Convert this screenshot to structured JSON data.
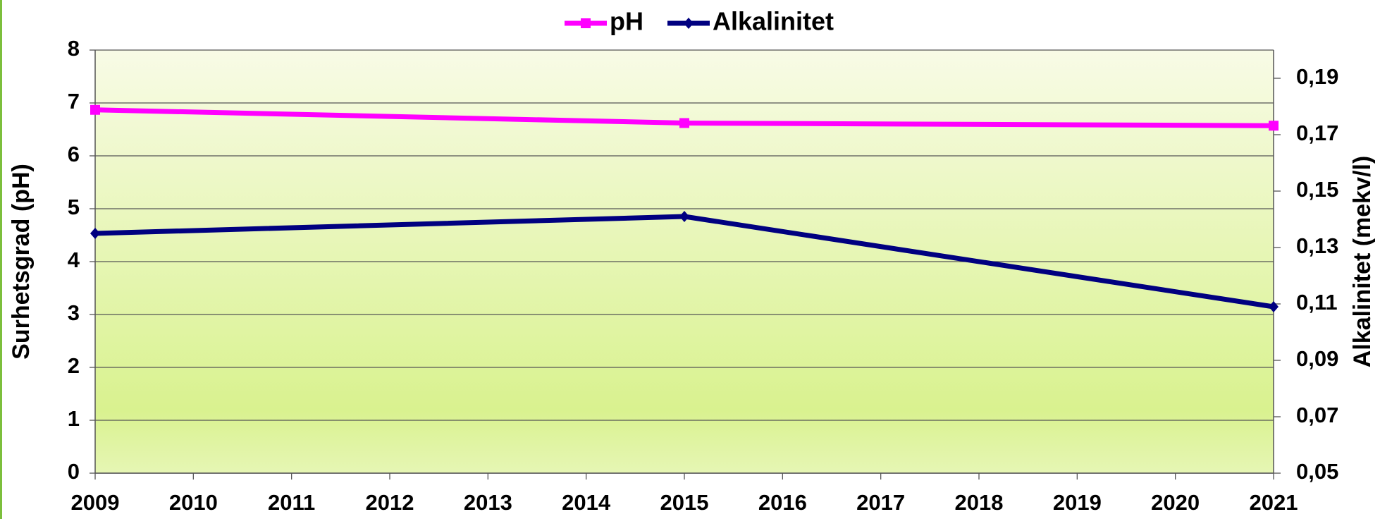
{
  "chart_data": {
    "type": "line",
    "x": [
      2009,
      2015,
      2021
    ],
    "series": [
      {
        "name": "pH",
        "color": "#ff00ff",
        "marker": "square",
        "values": [
          6.87,
          6.62,
          6.57
        ]
      },
      {
        "name": "Alkalinitet",
        "color": "#000080",
        "marker": "diamond",
        "axis": "y2",
        "values": [
          0.135,
          0.141,
          0.109
        ]
      }
    ],
    "xlim": [
      2009,
      2021
    ],
    "xticks": [
      2009,
      2010,
      2011,
      2012,
      2013,
      2014,
      2015,
      2016,
      2017,
      2018,
      2019,
      2020,
      2021
    ],
    "ylim": [
      0,
      8
    ],
    "yticks": [
      0,
      1,
      2,
      3,
      4,
      5,
      6,
      7,
      8
    ],
    "y2lim": [
      0.05,
      0.2
    ],
    "y2ticks": [
      {
        "value": 0.05,
        "label": "0,05"
      },
      {
        "value": 0.07,
        "label": "0,07"
      },
      {
        "value": 0.09,
        "label": "0,09"
      },
      {
        "value": 0.11,
        "label": "0,11"
      },
      {
        "value": 0.13,
        "label": "0,13"
      },
      {
        "value": 0.15,
        "label": "0,15"
      },
      {
        "value": 0.17,
        "label": "0,17"
      },
      {
        "value": 0.19,
        "label": "0,19"
      }
    ],
    "ylabel": "Surhetsgrad (pH)",
    "y2label": "Alkalinitet (mekv/l)",
    "grid": true,
    "legend": "top"
  }
}
